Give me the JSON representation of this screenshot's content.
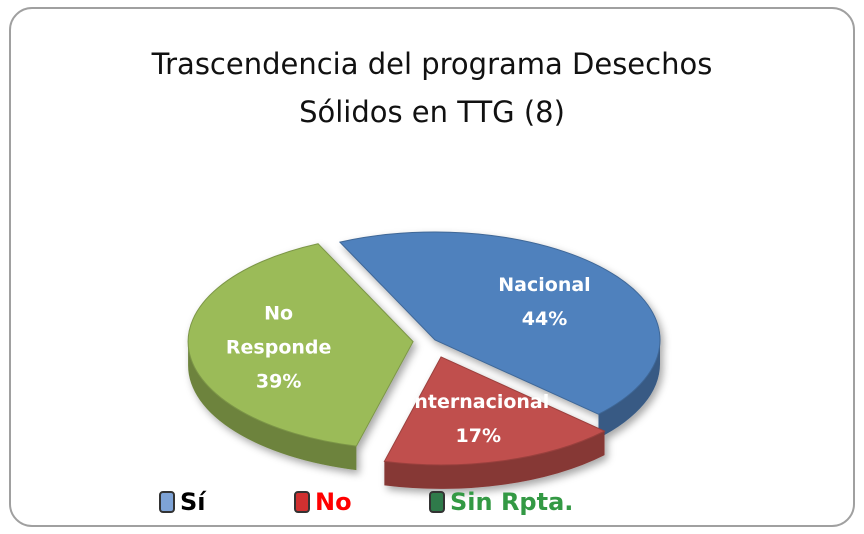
{
  "chart_data": {
    "type": "pie3d",
    "title": "Trascendencia del programa Desechos Sólidos en TTG (8)",
    "categories": [
      "Nacional",
      "Internacional",
      "No Responde"
    ],
    "values": [
      44,
      17,
      39
    ],
    "value_labels": [
      "44%",
      "17%",
      "39%"
    ],
    "colors": [
      "#4f81bd",
      "#c0504d",
      "#9bbb59"
    ],
    "legend": [
      {
        "label": "Sí",
        "color": "#7ea3d6",
        "text_color": "#000000"
      },
      {
        "label": "No",
        "color": "#d03030",
        "text_color": "#ff0000"
      },
      {
        "label": "Sin Rpta.",
        "color": "#2f7a4a",
        "text_color": "#339944"
      }
    ]
  }
}
